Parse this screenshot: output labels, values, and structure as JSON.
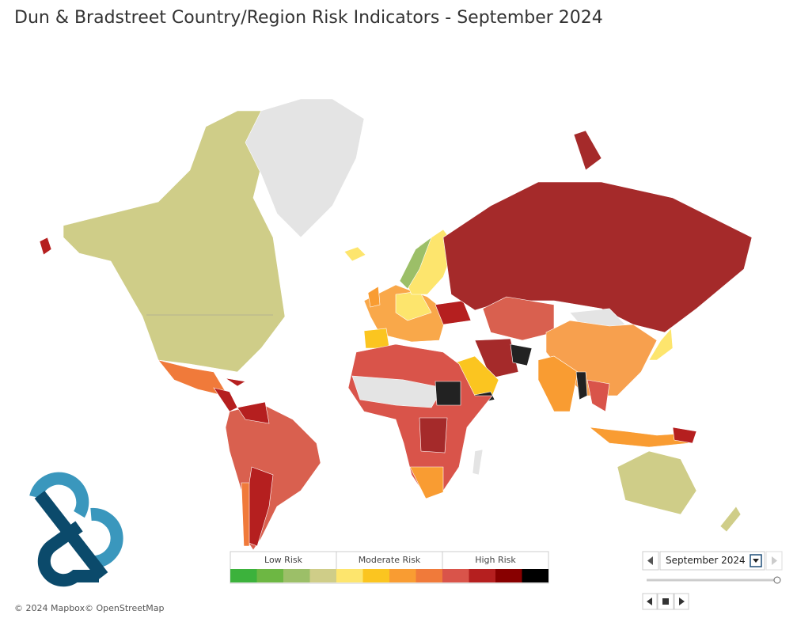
{
  "header": {
    "title": "Dun & Bradstreet Country/Region Risk Indicators - September 2024"
  },
  "legend": {
    "groups": [
      {
        "label": "Low Risk",
        "colors": [
          "#3cb23c",
          "#6db743",
          "#9cbf68",
          "#cfcd88"
        ]
      },
      {
        "label": "Moderate Risk",
        "colors": [
          "#fde56d",
          "#fbc520",
          "#f99c32",
          "#f07a3a"
        ]
      },
      {
        "label": "High Risk",
        "colors": [
          "#d9544a",
          "#b51f1f",
          "#880000",
          "#000000"
        ]
      }
    ]
  },
  "date_control": {
    "value": "September 2024"
  },
  "attribution": {
    "mapbox": "© 2024 Mapbox",
    "osm": "© OpenStreetMap"
  }
}
